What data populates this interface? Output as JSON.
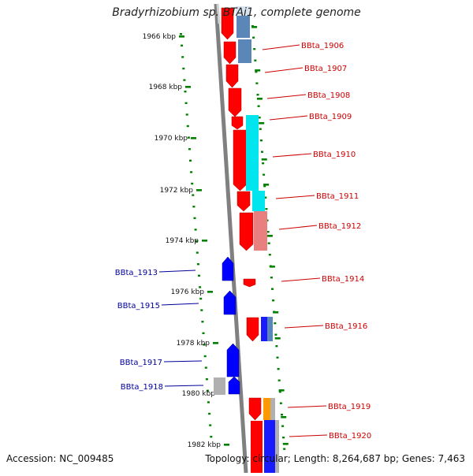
{
  "title": "Bradyrhizobium sp. BTAi1, complete genome",
  "footer": {
    "accession": "Accession: NC_009485",
    "topology": "Topology: circular; Length: 8,264,687 bp; Genes: 7,463"
  },
  "colors": {
    "forward_gene": "#ff0000",
    "reverse_gene": "#0000ff",
    "backbone": "#808080",
    "tick": "#008000",
    "forward_label": "#cc0000",
    "reverse_label": "#000099",
    "cyan_feature": "#00e5ee",
    "steel_feature": "#5b86b8",
    "pink_feature": "#e88080",
    "orange_feature": "#ff9900",
    "grey_feature": "#b0b0b0"
  },
  "scale_labels": [
    "1966 kbp",
    "1968 kbp",
    "1970 kbp",
    "1972 kbp",
    "1974 kbp",
    "1976 kbp",
    "1978 kbp",
    "1980 kbp",
    "1982 kbp"
  ],
  "forward_labels": [
    "BBta_1906",
    "BBta_1907",
    "BBta_1908",
    "BBta_1909",
    "BBta_1910",
    "BBta_1911",
    "BBta_1912",
    "BBta_1914",
    "BBta_1916",
    "BBta_1919",
    "BBta_1920"
  ],
  "reverse_labels": [
    "BBta_1913",
    "BBta_1915",
    "BBta_1917",
    "BBta_1918"
  ]
}
